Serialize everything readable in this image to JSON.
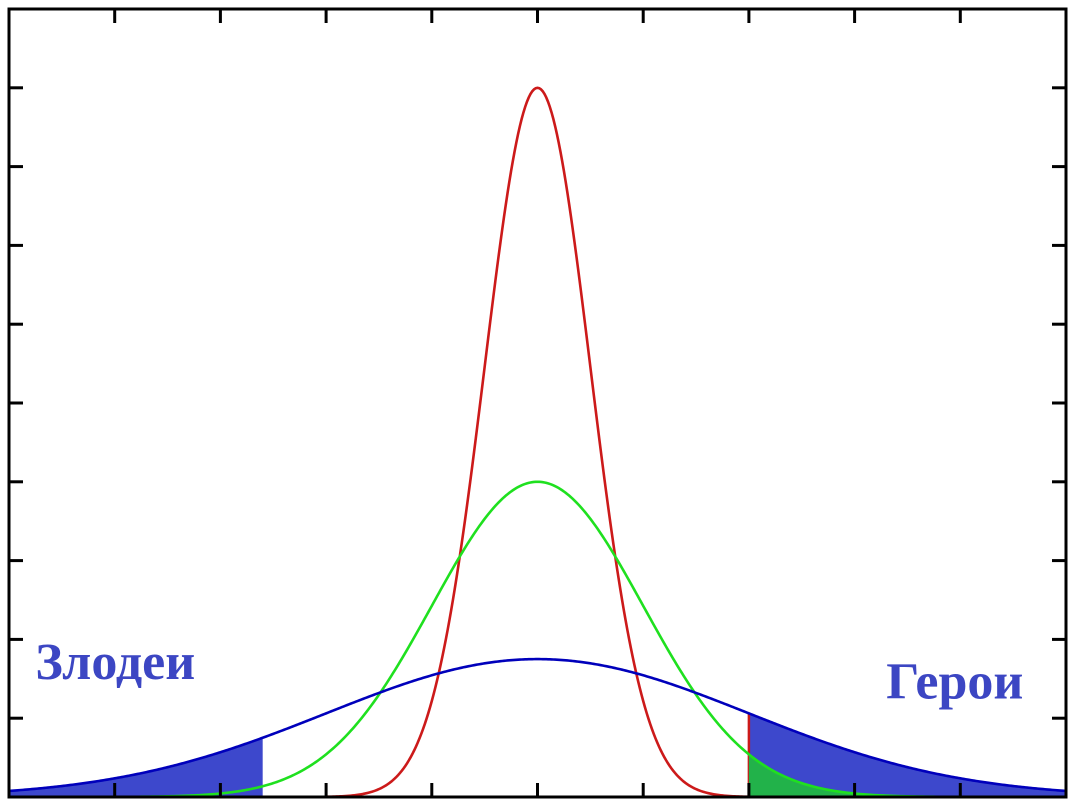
{
  "chart_data": {
    "type": "line",
    "title": "",
    "xlabel": "",
    "ylabel": "",
    "x_range": [
      -5,
      5
    ],
    "y_range": [
      0,
      1
    ],
    "grid": false,
    "ticks": {
      "x_count": 11,
      "y_count": 11,
      "tick_labels": false
    },
    "series": [
      {
        "color": "#cc1a1a",
        "mean": 0,
        "sd": 0.5,
        "peak": 0.9
      },
      {
        "color": "#1fe01f",
        "mean": 0,
        "sd": 1.0,
        "peak": 0.4
      },
      {
        "color": "#0000bb",
        "mean": 0,
        "sd": 2.0,
        "peak": 0.175
      }
    ],
    "shaded_regions": [
      {
        "series": 2,
        "from": -5,
        "to": -2.6,
        "color": "#3d48cc",
        "boundary_color": "#2db52d"
      },
      {
        "series": 2,
        "from": 2,
        "to": 5,
        "color": "#3d48cc",
        "boundary_color": "#cc1a1a"
      },
      {
        "series": 1,
        "from": 2,
        "to": 5,
        "color": "#22b24a"
      }
    ],
    "annotations": [
      {
        "text": "Злодеи",
        "x": -4.75,
        "y": 0.15,
        "color": "#3c46c3"
      },
      {
        "text": "Герои",
        "x": 3.3,
        "y": 0.125,
        "color": "#3c46c3"
      }
    ]
  }
}
